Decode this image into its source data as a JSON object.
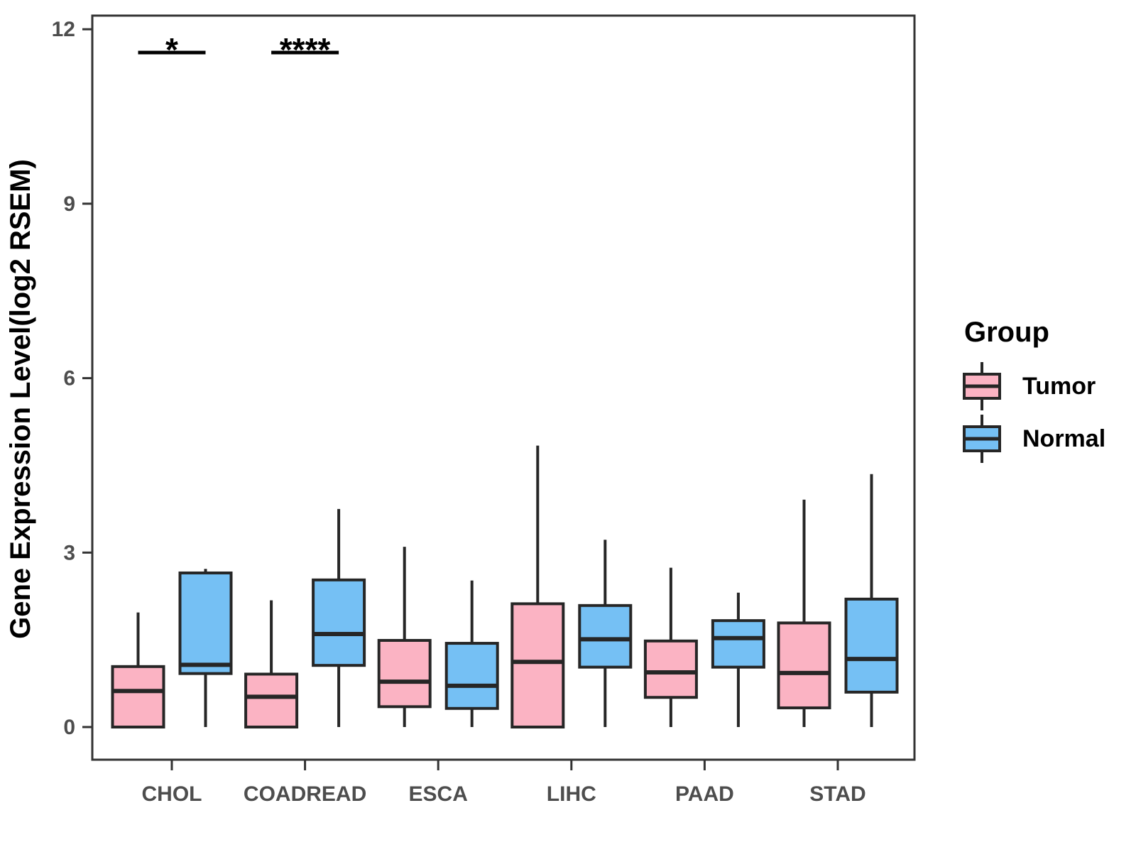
{
  "chart_data": {
    "type": "boxplot",
    "title": "",
    "xlabel": "",
    "ylabel": "Gene Expression Level(log2 RSEM)",
    "ylim": [
      0,
      12
    ],
    "yticks": [
      "0",
      "3",
      "6",
      "9",
      "12"
    ],
    "ytick_values": [
      0,
      3,
      6,
      9,
      12
    ],
    "grid": false,
    "categories": [
      "CHOL",
      "COADREAD",
      "ESCA",
      "LIHC",
      "PAAD",
      "STAD"
    ],
    "series": [
      {
        "name": "Tumor",
        "color": "#FBB3C3",
        "boxes": [
          {
            "category": "CHOL",
            "whisker_low": 0,
            "q1": 0,
            "median": 0.62,
            "q3": 1.04,
            "whisker_high": 1.97
          },
          {
            "category": "COADREAD",
            "whisker_low": 0,
            "q1": 0,
            "median": 0.52,
            "q3": 0.91,
            "whisker_high": 2.18
          },
          {
            "category": "ESCA",
            "whisker_low": 0,
            "q1": 0.35,
            "median": 0.78,
            "q3": 1.49,
            "whisker_high": 3.1
          },
          {
            "category": "LIHC",
            "whisker_low": 0,
            "q1": 0,
            "median": 1.12,
            "q3": 2.12,
            "whisker_high": 4.84
          },
          {
            "category": "PAAD",
            "whisker_low": 0,
            "q1": 0.51,
            "median": 0.94,
            "q3": 1.48,
            "whisker_high": 2.74
          },
          {
            "category": "STAD",
            "whisker_low": 0,
            "q1": 0.33,
            "median": 0.93,
            "q3": 1.79,
            "whisker_high": 3.91
          }
        ]
      },
      {
        "name": "Normal",
        "color": "#75C0F4",
        "boxes": [
          {
            "category": "CHOL",
            "whisker_low": 0,
            "q1": 0.92,
            "median": 1.07,
            "q3": 2.65,
            "whisker_high": 2.72
          },
          {
            "category": "COADREAD",
            "whisker_low": 0,
            "q1": 1.06,
            "median": 1.6,
            "q3": 2.53,
            "whisker_high": 3.75
          },
          {
            "category": "ESCA",
            "whisker_low": 0,
            "q1": 0.32,
            "median": 0.71,
            "q3": 1.44,
            "whisker_high": 2.52
          },
          {
            "category": "LIHC",
            "whisker_low": 0,
            "q1": 1.03,
            "median": 1.51,
            "q3": 2.09,
            "whisker_high": 3.22
          },
          {
            "category": "PAAD",
            "whisker_low": 0,
            "q1": 1.03,
            "median": 1.53,
            "q3": 1.83,
            "whisker_high": 2.31
          },
          {
            "category": "STAD",
            "whisker_low": 0,
            "q1": 0.6,
            "median": 1.17,
            "q3": 2.2,
            "whisker_high": 4.35
          }
        ]
      }
    ],
    "annotations": [
      {
        "category": "CHOL",
        "label": "*",
        "bar_y": 11.6
      },
      {
        "category": "COADREAD",
        "label": "****",
        "bar_y": 11.6
      }
    ],
    "legend": {
      "title": "Group",
      "position": "right",
      "entries": [
        {
          "label": "Tumor",
          "color": "#FBB3C3"
        },
        {
          "label": "Normal",
          "color": "#75C0F4"
        }
      ]
    },
    "colors": {
      "box_border": "#262626",
      "axis_line": "#333333",
      "tick_text": "#4d4d4d",
      "title_text": "#000000"
    }
  }
}
